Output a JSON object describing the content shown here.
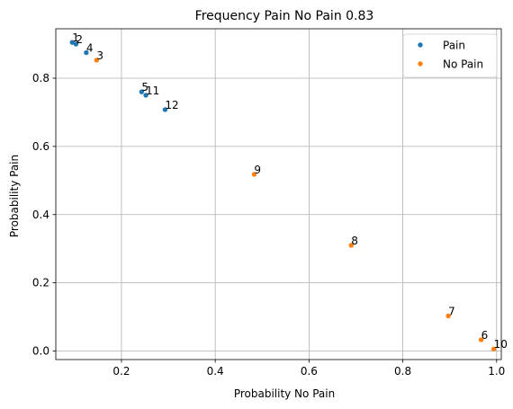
{
  "chart_data": {
    "type": "scatter",
    "title": "Frequency Pain No Pain 0.83",
    "xlabel": "Probability No Pain",
    "ylabel": "Probability Pain",
    "xlim": [
      0.06,
      1.01
    ],
    "ylim": [
      -0.025,
      0.945
    ],
    "xticks": [
      0.2,
      0.4,
      0.6,
      0.8,
      1.0
    ],
    "xtick_labels": [
      "0.2",
      "0.4",
      "0.6",
      "0.8",
      "1.0"
    ],
    "yticks": [
      0.0,
      0.2,
      0.4,
      0.6,
      0.8
    ],
    "ytick_labels": [
      "0.0",
      "0.2",
      "0.4",
      "0.6",
      "0.8"
    ],
    "grid": true,
    "legend_position": "top-right",
    "series": [
      {
        "name": "Pain",
        "color": "#1f77b4",
        "points": [
          {
            "label": "1",
            "x": 0.095,
            "y": 0.905
          },
          {
            "label": "2",
            "x": 0.103,
            "y": 0.9
          },
          {
            "label": "4",
            "x": 0.125,
            "y": 0.875
          },
          {
            "label": "5",
            "x": 0.243,
            "y": 0.76
          },
          {
            "label": "11",
            "x": 0.252,
            "y": 0.75
          },
          {
            "label": "12",
            "x": 0.293,
            "y": 0.708
          }
        ]
      },
      {
        "name": "No Pain",
        "color": "#ff7f0e",
        "points": [
          {
            "label": "3",
            "x": 0.147,
            "y": 0.853
          },
          {
            "label": "9",
            "x": 0.483,
            "y": 0.518
          },
          {
            "label": "8",
            "x": 0.69,
            "y": 0.31
          },
          {
            "label": "7",
            "x": 0.897,
            "y": 0.103
          },
          {
            "label": "6",
            "x": 0.967,
            "y": 0.033
          },
          {
            "label": "10",
            "x": 0.994,
            "y": 0.006
          }
        ]
      }
    ]
  }
}
